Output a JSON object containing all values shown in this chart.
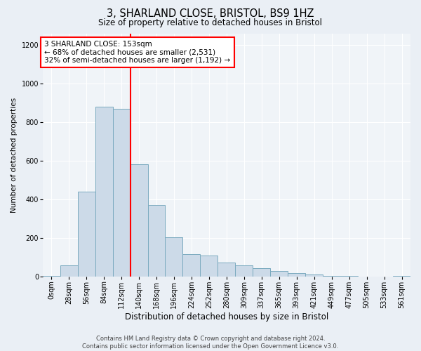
{
  "title1": "3, SHARLAND CLOSE, BRISTOL, BS9 1HZ",
  "title2": "Size of property relative to detached houses in Bristol",
  "xlabel": "Distribution of detached houses by size in Bristol",
  "ylabel": "Number of detached properties",
  "bar_values": [
    4,
    58,
    440,
    880,
    870,
    580,
    370,
    205,
    115,
    108,
    72,
    58,
    42,
    28,
    18,
    12,
    5,
    4,
    1,
    1,
    2
  ],
  "bin_labels": [
    "0sqm",
    "28sqm",
    "56sqm",
    "84sqm",
    "112sqm",
    "140sqm",
    "168sqm",
    "196sqm",
    "224sqm",
    "252sqm",
    "280sqm",
    "309sqm",
    "337sqm",
    "365sqm",
    "393sqm",
    "421sqm",
    "449sqm",
    "477sqm",
    "505sqm",
    "533sqm",
    "561sqm"
  ],
  "bar_color": "#ccdae8",
  "bar_edge_color": "#7aaabf",
  "vline_position": 4.5,
  "vline_color": "red",
  "annotation_text": "3 SHARLAND CLOSE: 153sqm\n← 68% of detached houses are smaller (2,531)\n32% of semi-detached houses are larger (1,192) →",
  "annotation_box_facecolor": "white",
  "annotation_box_edgecolor": "red",
  "ylim": [
    0,
    1260
  ],
  "yticks": [
    0,
    200,
    400,
    600,
    800,
    1000,
    1200
  ],
  "footer1": "Contains HM Land Registry data © Crown copyright and database right 2024.",
  "footer2": "Contains public sector information licensed under the Open Government Licence v3.0.",
  "bg_color": "#eaeff5",
  "plot_bg_color": "#f0f4f8",
  "grid_color": "#ffffff",
  "title1_fontsize": 10.5,
  "title2_fontsize": 8.5,
  "xlabel_fontsize": 8.5,
  "ylabel_fontsize": 7.5,
  "tick_fontsize": 7,
  "annot_fontsize": 7.5,
  "footer_fontsize": 6
}
